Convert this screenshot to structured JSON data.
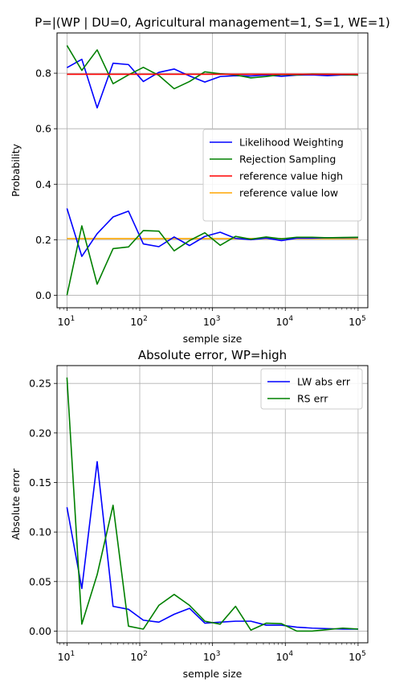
{
  "chart_data": [
    {
      "type": "line",
      "title": "P=|(WP | DU=0, Agricultural management=1, S=1, WE=1)",
      "xlabel": "semple size",
      "ylabel": "Probability",
      "xscale": "log",
      "xlim": [
        7.3,
        136000
      ],
      "ylim": [
        -0.045,
        0.945
      ],
      "yticks": [
        0.0,
        0.2,
        0.4,
        0.6,
        0.8
      ],
      "ytick_labels": [
        "0.0",
        "0.2",
        "0.4",
        "0.6",
        "0.8"
      ],
      "xticks": [
        10,
        100,
        1000,
        10000,
        100000
      ],
      "xtick_labels": [
        [
          "10",
          "1"
        ],
        [
          "10",
          "2"
        ],
        [
          "10",
          "3"
        ],
        [
          "10",
          "4"
        ],
        [
          "10",
          "5"
        ]
      ],
      "grid": true,
      "legend_position": "center-right",
      "series": [
        {
          "name": "Likelihood Weighting",
          "color": "#0000ff",
          "legend": true,
          "x": [
            10,
            16,
            26,
            43,
            70,
            112,
            183,
            297,
            483,
            784,
            1274,
            2069,
            3360,
            5455,
            8859,
            14384,
            23357,
            37927,
            61584,
            100000
          ],
          "y": [
            0.82,
            0.85,
            0.675,
            0.836,
            0.831,
            0.77,
            0.803,
            0.815,
            0.79,
            0.768,
            0.788,
            0.791,
            0.79,
            0.793,
            0.789,
            0.793,
            0.794,
            0.791,
            0.794,
            0.793
          ]
        },
        {
          "name": "Rejection Sampling",
          "color": "#008000",
          "legend": true,
          "x": [
            10,
            16,
            26,
            43,
            70,
            112,
            183,
            297,
            483,
            784,
            1274,
            2069,
            3360,
            5455,
            8859,
            14384,
            23357,
            37927,
            61584,
            100000
          ],
          "y": [
            0.9,
            0.81,
            0.884,
            0.762,
            0.794,
            0.821,
            0.792,
            0.744,
            0.77,
            0.805,
            0.798,
            0.794,
            0.783,
            0.788,
            0.795,
            0.794,
            0.797,
            0.796,
            0.795,
            0.793
          ]
        },
        {
          "name": "reference value high",
          "color": "#ff0000",
          "legend": true,
          "x": [
            10,
            100000
          ],
          "y": [
            0.796,
            0.796
          ]
        },
        {
          "name": "reference value low",
          "color": "#ffa500",
          "legend": true,
          "x": [
            10,
            100000
          ],
          "y": [
            0.204,
            0.204
          ]
        },
        {
          "name": "",
          "color": "#0000ff",
          "legend": false,
          "x": [
            10,
            16,
            26,
            43,
            70,
            112,
            183,
            297,
            483,
            784,
            1274,
            2069,
            3360,
            5455,
            8859,
            14384,
            23357,
            37927,
            61584,
            100000
          ],
          "y": [
            0.313,
            0.14,
            0.222,
            0.282,
            0.303,
            0.185,
            0.175,
            0.21,
            0.179,
            0.212,
            0.227,
            0.205,
            0.2,
            0.206,
            0.197,
            0.206,
            0.206,
            0.207,
            0.207,
            0.208
          ]
        },
        {
          "name": "",
          "color": "#008000",
          "legend": false,
          "x": [
            10,
            16,
            26,
            43,
            70,
            112,
            183,
            297,
            483,
            784,
            1274,
            2069,
            3360,
            5455,
            8859,
            14384,
            23357,
            37927,
            61584,
            100000
          ],
          "y": [
            0.0,
            0.25,
            0.04,
            0.168,
            0.174,
            0.233,
            0.231,
            0.16,
            0.197,
            0.225,
            0.18,
            0.212,
            0.202,
            0.21,
            0.203,
            0.209,
            0.209,
            0.207,
            0.208,
            0.209
          ]
        }
      ]
    },
    {
      "type": "line",
      "title": "Absolute error, WP=high",
      "xlabel": "semple size",
      "ylabel": "Absolute error",
      "xscale": "log",
      "xlim": [
        7.3,
        136000
      ],
      "ylim": [
        -0.0118,
        0.268
      ],
      "yticks": [
        0.0,
        0.05,
        0.1,
        0.15,
        0.2,
        0.25
      ],
      "ytick_labels": [
        "0.00",
        "0.05",
        "0.10",
        "0.15",
        "0.20",
        "0.25"
      ],
      "xticks": [
        10,
        100,
        1000,
        10000,
        100000
      ],
      "xtick_labels": [
        [
          "10",
          "1"
        ],
        [
          "10",
          "2"
        ],
        [
          "10",
          "3"
        ],
        [
          "10",
          "4"
        ],
        [
          "10",
          "5"
        ]
      ],
      "grid": true,
      "legend_position": "top-right",
      "series": [
        {
          "name": "LW abs err",
          "color": "#0000ff",
          "legend": true,
          "x": [
            10,
            16,
            26,
            43,
            70,
            112,
            183,
            297,
            483,
            784,
            1274,
            2069,
            3360,
            5455,
            8859,
            14384,
            23357,
            37927,
            61584,
            100000
          ],
          "y": [
            0.125,
            0.043,
            0.171,
            0.025,
            0.022,
            0.011,
            0.009,
            0.017,
            0.023,
            0.008,
            0.009,
            0.01,
            0.01,
            0.006,
            0.006,
            0.004,
            0.003,
            0.0025,
            0.002,
            0.002
          ]
        },
        {
          "name": "RS err",
          "color": "#008000",
          "legend": true,
          "x": [
            10,
            16,
            26,
            43,
            70,
            112,
            183,
            297,
            483,
            784,
            1274,
            2069,
            3360,
            5455,
            8859,
            14384,
            23357,
            37927,
            61584,
            100000
          ],
          "y": [
            0.256,
            0.007,
            0.057,
            0.127,
            0.005,
            0.002,
            0.026,
            0.037,
            0.026,
            0.01,
            0.007,
            0.025,
            0.001,
            0.008,
            0.0075,
            0.0,
            0.0,
            0.0015,
            0.003,
            0.002
          ]
        }
      ]
    }
  ]
}
